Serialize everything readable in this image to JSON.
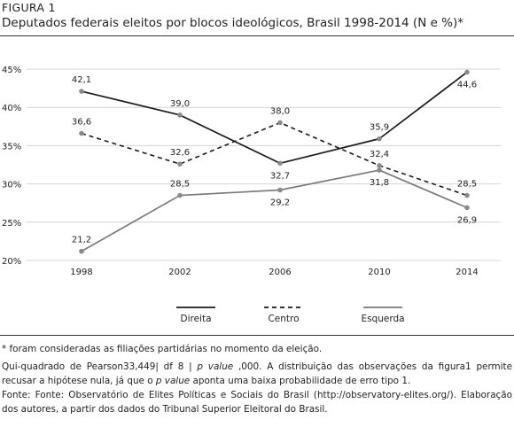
{
  "figure": {
    "label": "FIGURA 1",
    "title": "Deputados federais eleitos por blocos ideológicos, Brasil 1998-2014 (N e %)*"
  },
  "chart_data": {
    "type": "line",
    "x": [
      "1998",
      "2002",
      "2006",
      "2010",
      "2014"
    ],
    "ylim": [
      20,
      45
    ],
    "yticks": [
      "20%",
      "25%",
      "30%",
      "35%",
      "40%",
      "45%"
    ],
    "grid": "horizontal",
    "legend_position": "bottom",
    "series": [
      {
        "name": "Direita",
        "values": [
          42.1,
          39.0,
          32.7,
          35.9,
          44.6
        ],
        "labels": [
          "42,1",
          "39,0",
          "32,7",
          "35,9",
          "44,6"
        ],
        "style": "solid",
        "color": "#1a1a1a"
      },
      {
        "name": "Centro",
        "values": [
          36.6,
          32.6,
          38.0,
          32.4,
          28.5
        ],
        "labels": [
          "36,6",
          "32,6",
          "38,0",
          "32,4",
          "28,5"
        ],
        "style": "dashed",
        "color": "#1a1a1a"
      },
      {
        "name": "Esquerda",
        "values": [
          21.2,
          28.5,
          29.2,
          31.8,
          26.9
        ],
        "labels": [
          "21,2",
          "28,5",
          "29,2",
          "31,8",
          "26,9"
        ],
        "style": "solid",
        "color": "#7a7a7a"
      }
    ]
  },
  "notes": {
    "asterisk": "*  foram consideradas as filiações partidárias no momento da eleição.",
    "chi_pre": "Qui-quadrado de Pearson33,449| df 8 | ",
    "p_value_1": "p value",
    "chi_mid": " ,000. A distribuição das observações da figura1 permite recusar a hipótese nula, já que o ",
    "p_value_2": "p value",
    "chi_post": " aponta uma baixa probabilidade de erro tipo 1.",
    "source": "Fonte: Fonte: Observatório de Elites Políticas e Sociais do Brasil (http://observatory-elites.org/). Elaboração dos autores, a partir dos dados do Tribunal Superior Eleitoral do Brasil."
  }
}
